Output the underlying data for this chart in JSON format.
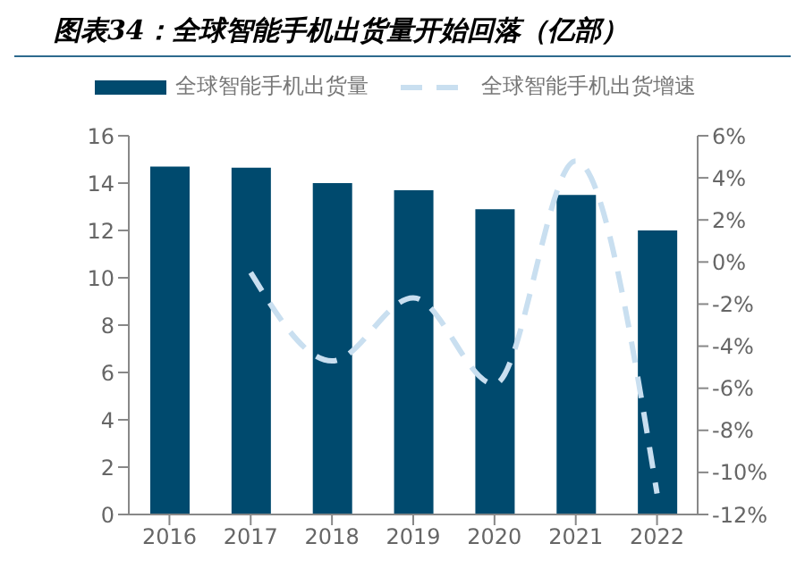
{
  "chart_data": {
    "type": "bar",
    "title": "图表34：全球智能手机出货量开始回落（亿部）",
    "categories": [
      "2016",
      "2017",
      "2018",
      "2019",
      "2020",
      "2021",
      "2022"
    ],
    "series": [
      {
        "name": "全球智能手机出货量",
        "color": "#004a6e",
        "values": [
          14.7,
          14.65,
          14.0,
          13.7,
          12.9,
          13.5,
          12.0
        ]
      },
      {
        "name": "全球智能手机出货增速",
        "type": "line",
        "axis": "y2",
        "color": "#c9dff0",
        "line_style": "dashed",
        "values": [
          null,
          -0.5,
          -4.7,
          -1.7,
          -5.8,
          4.8,
          -11.0
        ]
      }
    ],
    "ylim": [
      0,
      16
    ],
    "yticks": [
      0,
      2,
      4,
      6,
      8,
      10,
      12,
      14,
      16
    ],
    "y2lim": [
      -12,
      6
    ],
    "y2ticks": [
      {
        "value": -12,
        "label": "-12%"
      },
      {
        "value": -10,
        "label": "-10%"
      },
      {
        "value": -8,
        "label": "-8%"
      },
      {
        "value": -6,
        "label": "-6%"
      },
      {
        "value": -4,
        "label": "-4%"
      },
      {
        "value": -2,
        "label": "-2%"
      },
      {
        "value": 0,
        "label": "0%"
      },
      {
        "value": 2,
        "label": "2%"
      },
      {
        "value": 4,
        "label": "4%"
      },
      {
        "value": 6,
        "label": "6%"
      }
    ],
    "grid": false,
    "legend": "top",
    "marker": "none"
  }
}
